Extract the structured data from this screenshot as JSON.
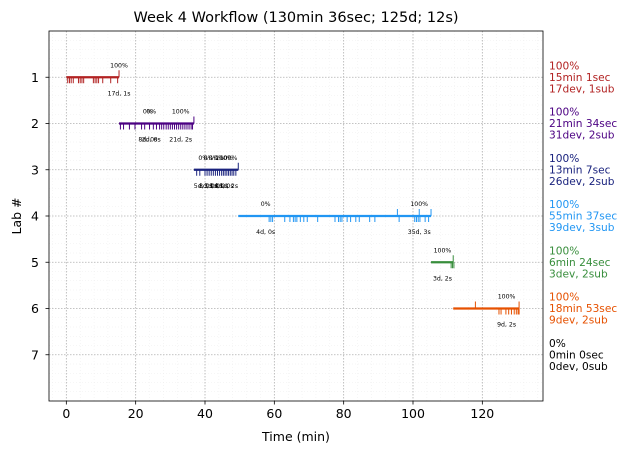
{
  "chart_data": {
    "type": "timeline",
    "title": "Week 4 Workflow (130min 36sec; 125d; 12s)",
    "xlabel": "Time (min)",
    "ylabel": "Lab #",
    "xlim": [
      -5,
      137.5
    ],
    "ylim": [
      8.0,
      0.0
    ],
    "xticks": [
      0,
      20,
      40,
      60,
      80,
      100,
      120
    ],
    "yticks": [
      1,
      2,
      3,
      4,
      5,
      6,
      7
    ],
    "grid": true,
    "labs": [
      {
        "lab": 1,
        "color": "#b22222",
        "start": 0.0,
        "end": 15.2,
        "devs": [
          0.4,
          0.9,
          1.4,
          2.0,
          3.5,
          4.0,
          4.5,
          5.0,
          7.8,
          8.3,
          8.8,
          9.3,
          10.5,
          12.8,
          14.8
        ],
        "subs": [
          15.2
        ],
        "marks": [
          {
            "x": 15.2,
            "top": "100%",
            "bottom": "17d, 1s"
          }
        ],
        "side": [
          "100%",
          "15min 1sec",
          "17dev, 1sub"
        ]
      },
      {
        "lab": 2,
        "color": "#4b0082",
        "start": 15.2,
        "end": 36.8,
        "devs": [
          15.6,
          16.5,
          18.2,
          19.8,
          21.7,
          22.6,
          24.0,
          25.1,
          26.0,
          26.9,
          27.5,
          28.1,
          28.8,
          29.4,
          30.0,
          30.6,
          31.2,
          31.8,
          32.4,
          33.0,
          33.6,
          34.2,
          34.8,
          35.4,
          36.0,
          36.4
        ],
        "subs": [
          36.8
        ],
        "marks": [
          {
            "x": 23.5,
            "top": "0%",
            "bottom": "8d, 0s"
          },
          {
            "x": 24.5,
            "top": "0%",
            "bottom": "2d, 0s"
          },
          {
            "x": 33.0,
            "top": "100%",
            "bottom": "21d, 2s"
          }
        ],
        "side": [
          "100%",
          "21min 34sec",
          "31dev, 2sub"
        ]
      },
      {
        "lab": 3,
        "color": "#1a237e",
        "start": 36.8,
        "end": 49.6,
        "devs": [
          37.6,
          38.5,
          40.0,
          40.6,
          41.2,
          41.8,
          42.4,
          43.0,
          43.6,
          44.2,
          44.8,
          45.3,
          45.8,
          46.3,
          46.8,
          47.3,
          47.8,
          48.3,
          48.9
        ],
        "subs": [
          49.6
        ],
        "marks": [
          {
            "x": 39.5,
            "top": "0%",
            "bottom": "5d, 0s"
          },
          {
            "x": 41.0,
            "top": "0%",
            "bottom": "8d, 0s"
          },
          {
            "x": 42.5,
            "top": "0%",
            "bottom": "3d, 0s"
          },
          {
            "x": 44.0,
            "top": "0%",
            "bottom": "3d, 0s"
          },
          {
            "x": 45.5,
            "top": "100%",
            "bottom": "0d, 0s"
          },
          {
            "x": 46.8,
            "top": "100%",
            "bottom": "1d, 2s"
          }
        ],
        "side": [
          "100%",
          "13min 7sec",
          "26dev, 2sub"
        ]
      },
      {
        "lab": 4,
        "color": "#2196f3",
        "start": 49.6,
        "end": 105.2,
        "devs": [
          58.5,
          59.0,
          59.5,
          63.0,
          64.5,
          65.5,
          66.0,
          66.5,
          67.5,
          68.5,
          69.5,
          72.5,
          77.5,
          78.5,
          79.0,
          79.5,
          81.0,
          82.0,
          83.5,
          84.5,
          87.5,
          89.0,
          96.0,
          100.5,
          101.0,
          101.5,
          102.0,
          103.5,
          104.5
        ],
        "subs": [
          95.5,
          101.8,
          105.2
        ],
        "marks": [
          {
            "x": 57.5,
            "top": "0%",
            "bottom": "4d, 0s"
          },
          {
            "x": 101.8,
            "top": "100%",
            "bottom": "35d, 3s"
          }
        ],
        "side": [
          "100%",
          "55min 37sec",
          "39dev, 3sub"
        ]
      },
      {
        "lab": 5,
        "color": "#388e3c",
        "start": 105.2,
        "end": 111.6,
        "devs": [
          111.0,
          111.4,
          111.8
        ],
        "subs": [
          111.6
        ],
        "marks": [
          {
            "x": 108.5,
            "top": "100%",
            "bottom": "3d, 2s"
          }
        ],
        "side": [
          "100%",
          "6min 24sec",
          "3dev, 2sub"
        ]
      },
      {
        "lab": 6,
        "color": "#e65100",
        "start": 111.6,
        "end": 130.6,
        "devs": [
          124.8,
          125.4,
          126.8,
          127.6,
          128.4,
          129.2,
          129.8,
          130.3,
          130.6
        ],
        "subs": [
          118.0,
          130.6
        ],
        "marks": [
          {
            "x": 127.0,
            "top": "100%",
            "bottom": "9d, 2s"
          }
        ],
        "side": [
          "100%",
          "18min 53sec",
          "9dev, 2sub"
        ]
      },
      {
        "lab": 7,
        "color": "#000000",
        "start": null,
        "end": null,
        "devs": [],
        "subs": [],
        "marks": [],
        "side": [
          "0%",
          "0min 0sec",
          "0dev, 0sub"
        ]
      }
    ]
  }
}
